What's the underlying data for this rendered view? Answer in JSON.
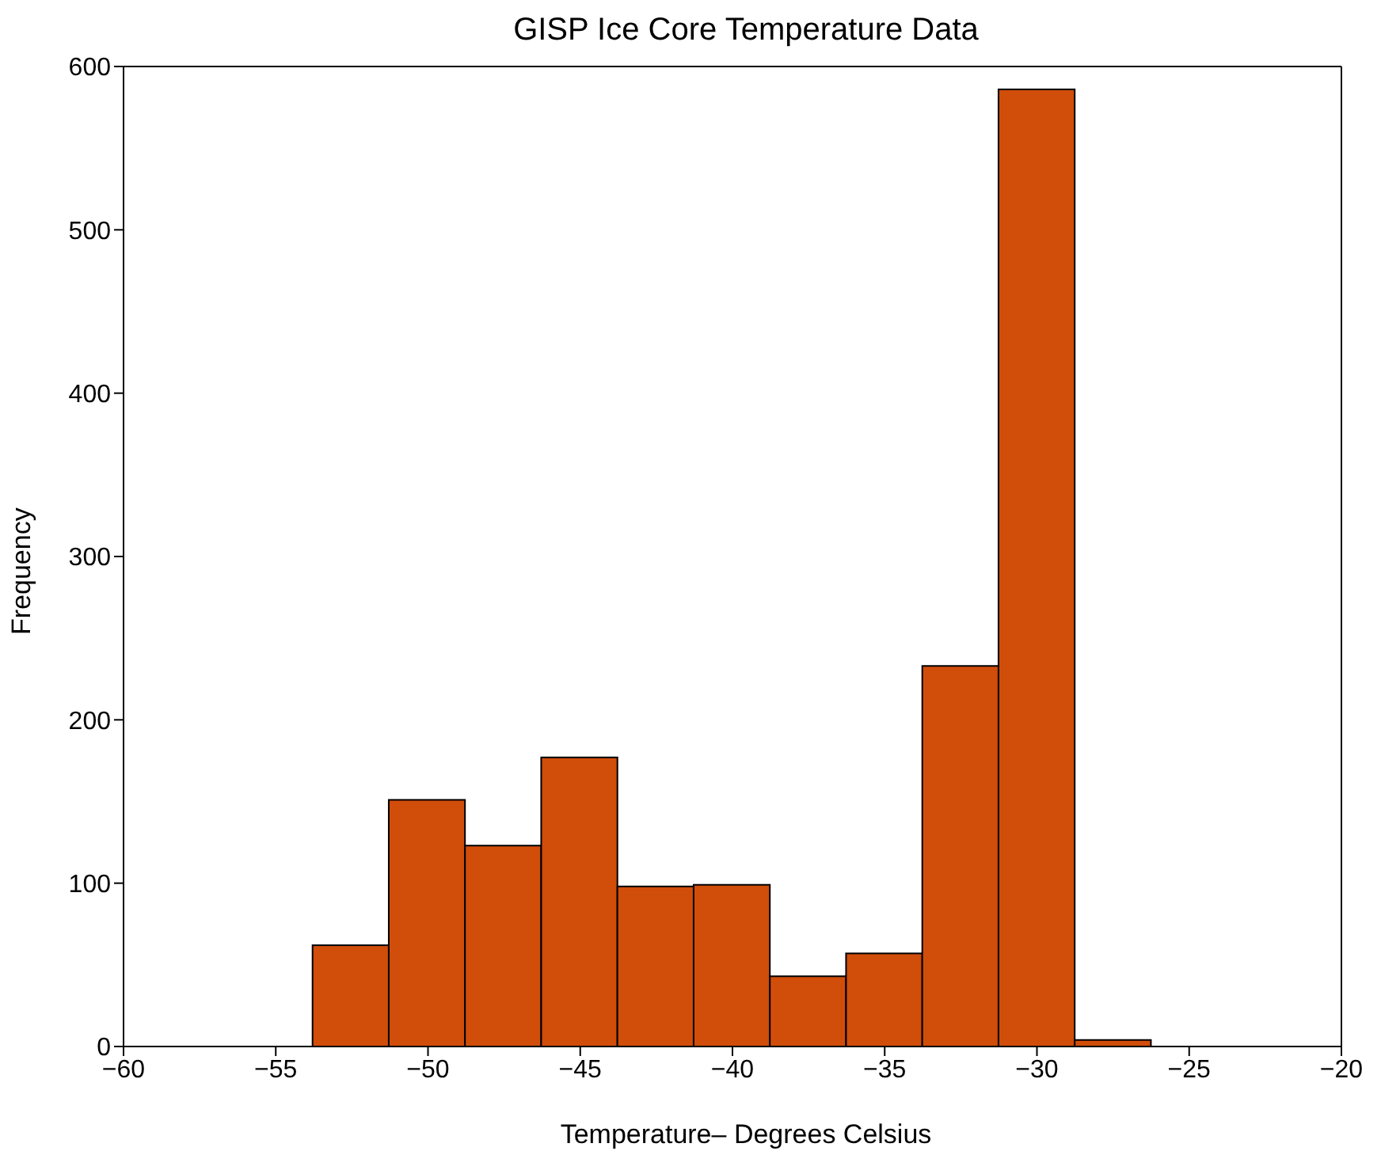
{
  "chart_data": {
    "type": "histogram",
    "title": "GISP Ice Core Temperature Data",
    "xlabel": "Temperature– Degrees Celsius",
    "ylabel": "Frequency",
    "bins": [
      -53.8,
      -51.3,
      -48.8,
      -46.3,
      -43.8,
      -41.3,
      -38.8,
      -36.3,
      -33.8,
      -31.3,
      -28.8,
      -26.3
    ],
    "values": [
      62,
      151,
      123,
      177,
      98,
      99,
      43,
      57,
      233,
      586,
      4
    ],
    "color": "#d14d0a",
    "xlim": [
      -60,
      -20
    ],
    "xticks": [
      -60,
      -55,
      -50,
      -45,
      -40,
      -35,
      -30,
      -25,
      -20
    ],
    "ylim": [
      0,
      600
    ],
    "yticks": [
      0,
      100,
      200,
      300,
      400,
      500,
      600
    ],
    "grid": false
  }
}
